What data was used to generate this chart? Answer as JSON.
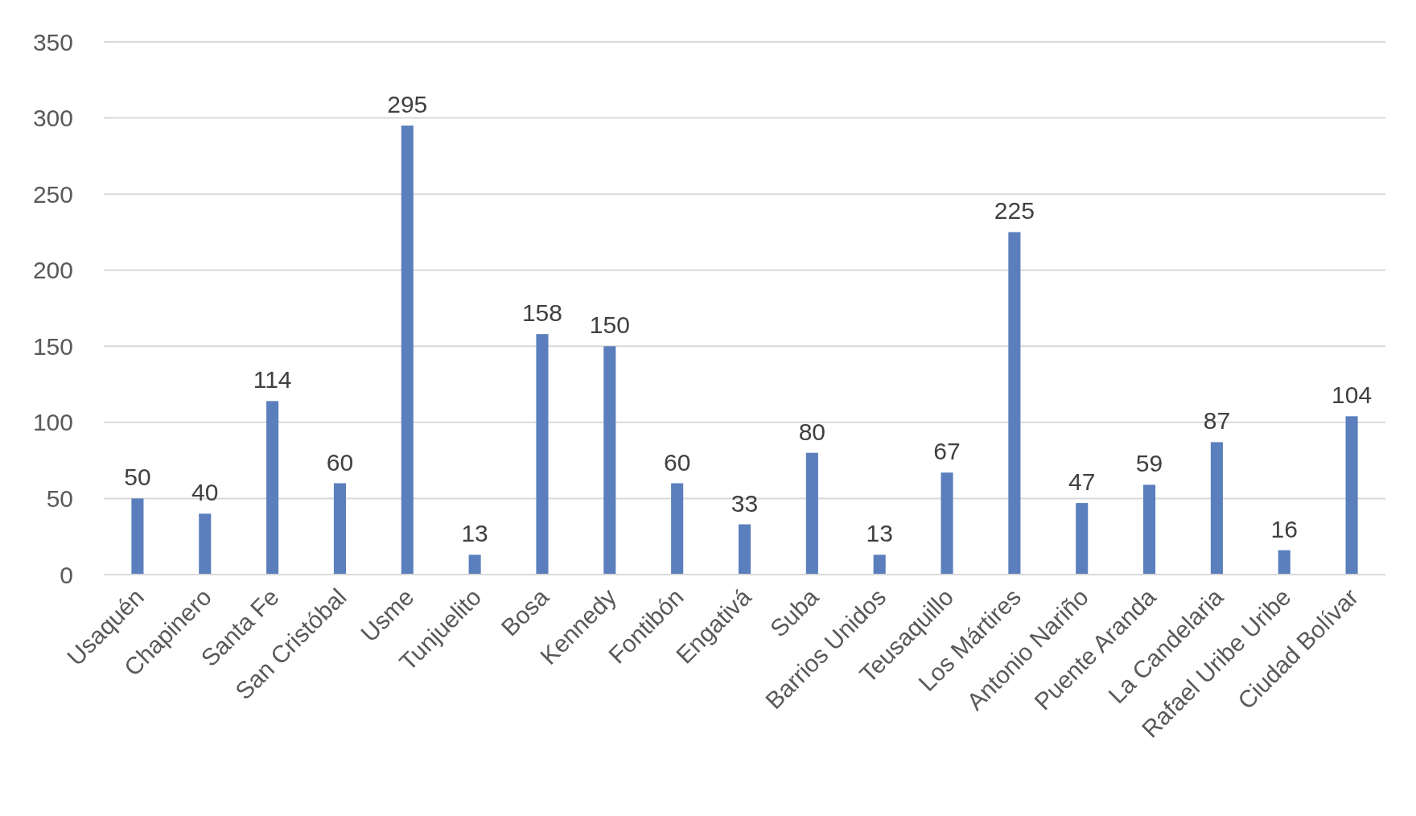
{
  "chart_data": {
    "type": "bar",
    "categories": [
      "Usaquén",
      "Chapinero",
      "Santa Fe",
      "San Cristóbal",
      "Usme",
      "Tunjuelito",
      "Bosa",
      "Kennedy",
      "Fontibón",
      "Engativá",
      "Suba",
      "Barrios Unidos",
      "Teusaquillo",
      "Los Mártires",
      "Antonio Nariño",
      "Puente Aranda",
      "La Candelaria",
      "Rafael Uribe Uribe",
      "Ciudad Bolívar"
    ],
    "values": [
      50,
      40,
      114,
      60,
      295,
      13,
      158,
      150,
      60,
      33,
      80,
      13,
      67,
      225,
      47,
      59,
      87,
      16,
      104
    ],
    "color": "#5b7fbd",
    "ylim": [
      0,
      350
    ],
    "yticks": [
      0,
      50,
      100,
      150,
      200,
      250,
      300,
      350
    ],
    "grid": "y",
    "data_labels": true
  }
}
